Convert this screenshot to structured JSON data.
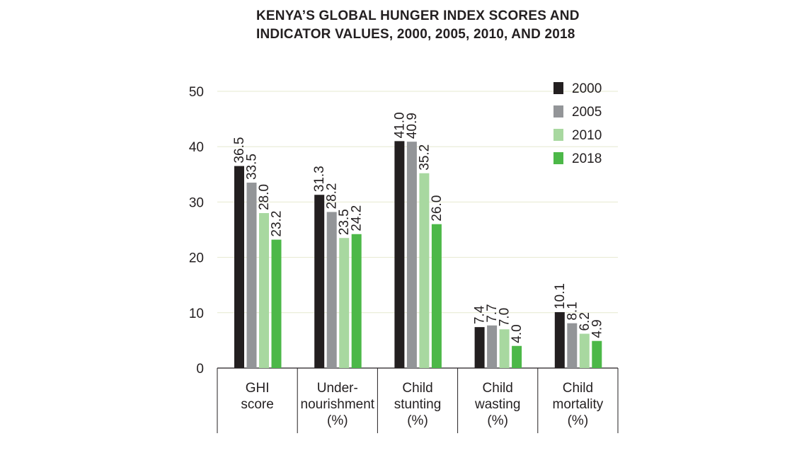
{
  "title_lines": [
    "KENYA’S GLOBAL HUNGER INDEX SCORES AND",
    "INDICATOR VALUES, 2000, 2005, 2010, AND 2018"
  ],
  "colors": {
    "2000": "#231f20",
    "2005": "#939598",
    "2010": "#a8d8a0",
    "2018": "#4cb848",
    "grid": "#e6e8cf",
    "axis": "#231f20"
  },
  "chart_data": {
    "type": "bar",
    "title": "KENYA’S GLOBAL HUNGER INDEX SCORES AND INDICATOR VALUES, 2000, 2005, 2010, AND 2018",
    "categories": [
      [
        "GHI",
        "score"
      ],
      [
        "Under-",
        "nourishment",
        "(%)"
      ],
      [
        "Child",
        "stunting",
        "(%)"
      ],
      [
        "Child",
        "wasting",
        "(%)"
      ],
      [
        "Child",
        "mortality",
        "(%)"
      ]
    ],
    "series": [
      {
        "name": "2000",
        "values": [
          36.5,
          31.3,
          41.0,
          7.4,
          10.1
        ],
        "labels": [
          "36.5",
          "31.3",
          "41.0",
          "7.4",
          "10.1"
        ]
      },
      {
        "name": "2005",
        "values": [
          33.5,
          28.2,
          40.9,
          7.7,
          8.1
        ],
        "labels": [
          "33.5",
          "28.2",
          "40.9",
          "7.7",
          "8.1"
        ]
      },
      {
        "name": "2010",
        "values": [
          28.0,
          23.5,
          35.2,
          7.0,
          6.2
        ],
        "labels": [
          "28.0",
          "23.5",
          "35.2",
          "7.0",
          "6.2"
        ]
      },
      {
        "name": "2018",
        "values": [
          23.2,
          24.2,
          26.0,
          4.0,
          4.9
        ],
        "labels": [
          "23.2",
          "24.2",
          "26.0",
          "4.0",
          "4.9"
        ]
      }
    ],
    "yticks": [
      "0",
      "10",
      "20",
      "30",
      "40",
      "50"
    ],
    "ylim": [
      0,
      50
    ],
    "grid": true,
    "legend": "top-right"
  }
}
